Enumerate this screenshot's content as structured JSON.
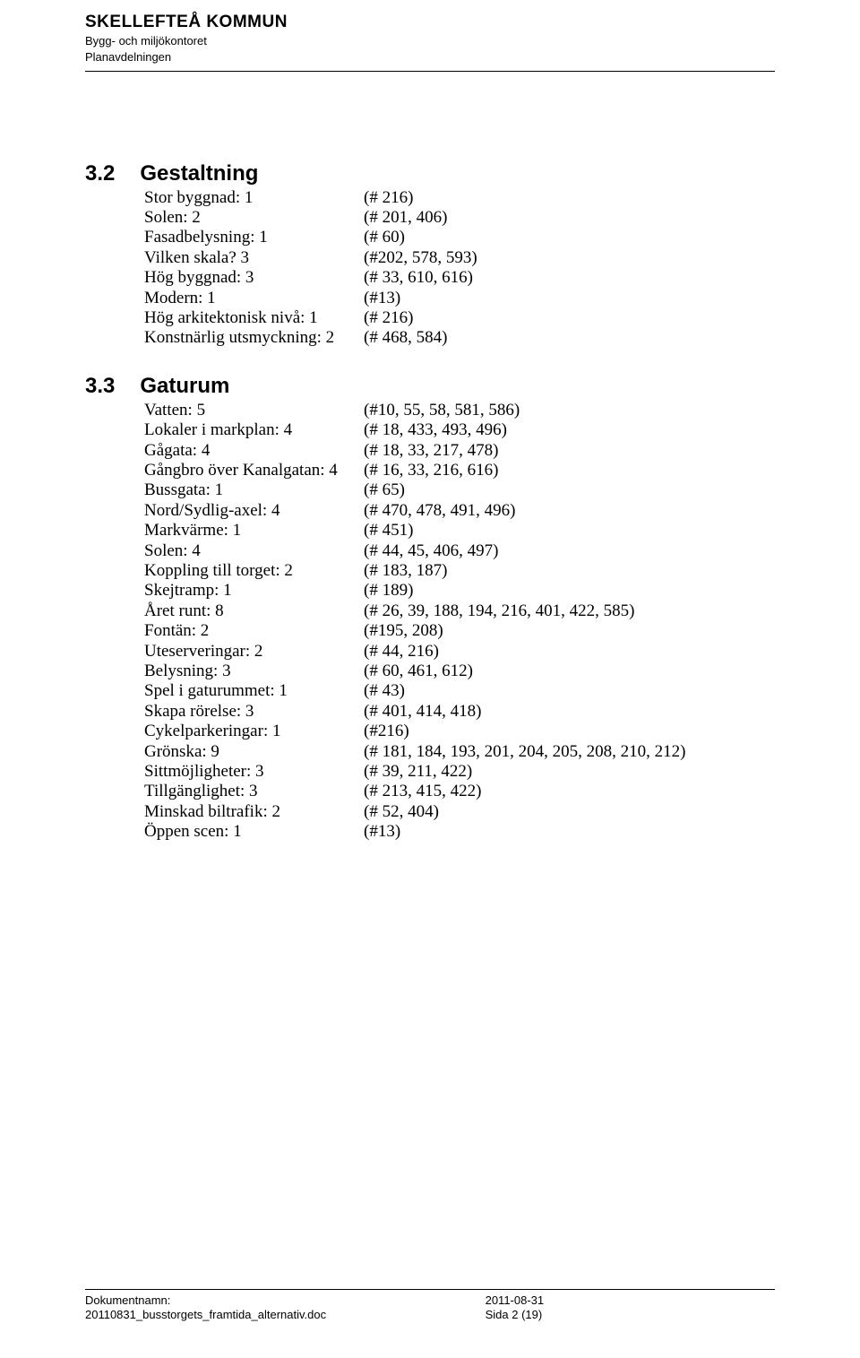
{
  "header": {
    "org": "SKELLEFTEÅ KOMMUN",
    "dept1": "Bygg- och miljökontoret",
    "dept2": "Planavdelningen"
  },
  "sections": [
    {
      "num": "3.2",
      "title": "Gestaltning",
      "items": [
        {
          "label": "Stor byggnad: 1",
          "ref": "(# 216)"
        },
        {
          "label": "Solen: 2",
          "ref": "(# 201, 406)"
        },
        {
          "label": "Fasadbelysning: 1",
          "ref": "(# 60)"
        },
        {
          "label": "Vilken skala? 3",
          "ref": "(#202, 578, 593)"
        },
        {
          "label": "Hög byggnad: 3",
          "ref": "(# 33, 610, 616)"
        },
        {
          "label": "Modern: 1",
          "ref": "(#13)"
        },
        {
          "label": "Hög arkitektonisk nivå: 1",
          "ref": "(# 216)"
        },
        {
          "label": "Konstnärlig utsmyckning: 2",
          "ref": "(# 468, 584)"
        }
      ]
    },
    {
      "num": "3.3",
      "title": "Gaturum",
      "items": [
        {
          "label": "Vatten: 5",
          "ref": "(#10, 55, 58, 581, 586)"
        },
        {
          "label": "Lokaler i markplan: 4",
          "ref": "(# 18, 433, 493, 496)"
        },
        {
          "label": "Gågata: 4",
          "ref": "(# 18, 33, 217, 478)"
        },
        {
          "label": "Gångbro över Kanalgatan: 4",
          "ref": "(# 16, 33, 216, 616)"
        },
        {
          "label": "Bussgata: 1",
          "ref": "(# 65)"
        },
        {
          "label": "Nord/Sydlig-axel: 4",
          "ref": "(# 470, 478, 491, 496)"
        },
        {
          "label": "Markvärme: 1",
          "ref": "(# 451)"
        },
        {
          "label": "Solen: 4",
          "ref": "(# 44, 45, 406, 497)"
        },
        {
          "label": "Koppling till torget: 2",
          "ref": "(# 183, 187)"
        },
        {
          "label": "Skejtramp: 1",
          "ref": "(# 189)"
        },
        {
          "label": "Året runt: 8",
          "ref": "(# 26, 39, 188, 194, 216, 401, 422, 585)"
        },
        {
          "label": "Fontän: 2",
          "ref": "(#195, 208)"
        },
        {
          "label": "Uteserveringar: 2",
          "ref": "(# 44, 216)"
        },
        {
          "label": "Belysning: 3",
          "ref": "(# 60, 461, 612)"
        },
        {
          "label": "Spel i gaturummet: 1",
          "ref": "(# 43)"
        },
        {
          "label": "Skapa rörelse: 3",
          "ref": "(# 401, 414, 418)"
        },
        {
          "label": "Cykelparkeringar: 1",
          "ref": "(#216)"
        },
        {
          "label": "Grönska: 9",
          "ref": "(# 181, 184, 193, 201, 204, 205, 208, 210, 212)"
        },
        {
          "label": "Sittmöjligheter: 3",
          "ref": "(# 39, 211, 422)"
        },
        {
          "label": "Tillgänglighet: 3",
          "ref": "(# 213, 415, 422)"
        },
        {
          "label": "Minskad biltrafik: 2",
          "ref": "(# 52, 404)"
        },
        {
          "label": "Öppen scen: 1",
          "ref": "(#13)"
        }
      ]
    }
  ],
  "footer": {
    "docLabel": "Dokumentnamn:",
    "docName": "20110831_busstorgets_framtida_alternativ.doc",
    "date": "2011-08-31",
    "pageText": "Sida 2 (19)"
  }
}
